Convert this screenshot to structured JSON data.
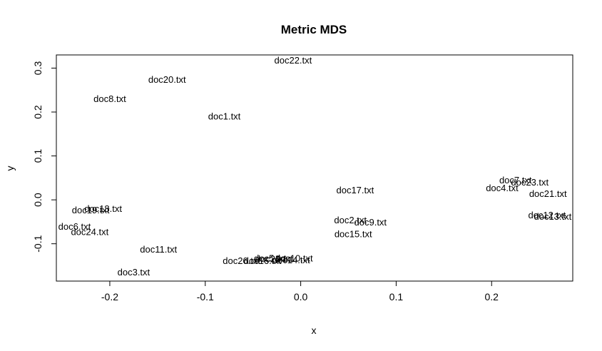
{
  "chart_data": {
    "type": "scatter",
    "title": "Metric MDS",
    "xlabel": "x",
    "ylabel": "y",
    "xlim": [
      -0.256,
      0.285
    ],
    "ylim": [
      -0.185,
      0.33
    ],
    "xticks": [
      -0.2,
      -0.1,
      0.0,
      0.1,
      0.2
    ],
    "xtick_labels": [
      "-0.2",
      "-0.1",
      "0.0",
      "0.1",
      "0.2"
    ],
    "yticks": [
      -0.1,
      0.0,
      0.1,
      0.2,
      0.3
    ],
    "ytick_labels": [
      "-0.1",
      "0.0",
      "0.1",
      "0.2",
      "0.3"
    ],
    "points": [
      {
        "label": "doc1.txt",
        "x": -0.08,
        "y": 0.19
      },
      {
        "label": "doc2.txt",
        "x": 0.052,
        "y": -0.046
      },
      {
        "label": "doc3.txt",
        "x": -0.175,
        "y": -0.165
      },
      {
        "label": "doc4.txt",
        "x": 0.211,
        "y": 0.027
      },
      {
        "label": "doc5.txt",
        "x": -0.032,
        "y": -0.133
      },
      {
        "label": "doc6.txt",
        "x": -0.237,
        "y": -0.061
      },
      {
        "label": "doc7.txt",
        "x": 0.225,
        "y": 0.045
      },
      {
        "label": "doc8.txt",
        "x": -0.2,
        "y": 0.23
      },
      {
        "label": "doc9.txt",
        "x": 0.073,
        "y": -0.051
      },
      {
        "label": "doc10.txt",
        "x": -0.007,
        "y": -0.133
      },
      {
        "label": "doc11.txt",
        "x": -0.149,
        "y": -0.113
      },
      {
        "label": "doc12.txt",
        "x": 0.258,
        "y": -0.035
      },
      {
        "label": "doc13.txt",
        "x": 0.264,
        "y": -0.038
      },
      {
        "label": "doc14.txt",
        "x": -0.01,
        "y": -0.137
      },
      {
        "label": "doc15.txt",
        "x": 0.055,
        "y": -0.078
      },
      {
        "label": "doc16.txt",
        "x": -0.04,
        "y": -0.139
      },
      {
        "label": "doc17.txt",
        "x": 0.057,
        "y": 0.022
      },
      {
        "label": "doc18.txt",
        "x": -0.207,
        "y": -0.02
      },
      {
        "label": "doc19.txt",
        "x": -0.22,
        "y": -0.023
      },
      {
        "label": "doc20.txt",
        "x": -0.14,
        "y": 0.274
      },
      {
        "label": "doc21.txt",
        "x": 0.259,
        "y": 0.014
      },
      {
        "label": "doc22.txt",
        "x": -0.008,
        "y": 0.318
      },
      {
        "label": "doc23.txt",
        "x": 0.24,
        "y": 0.04
      },
      {
        "label": "doc24.txt",
        "x": -0.221,
        "y": -0.073
      },
      {
        "label": "doc25.txt",
        "x": -0.028,
        "y": -0.135
      },
      {
        "label": "doc26.txt",
        "x": -0.062,
        "y": -0.139
      }
    ]
  }
}
